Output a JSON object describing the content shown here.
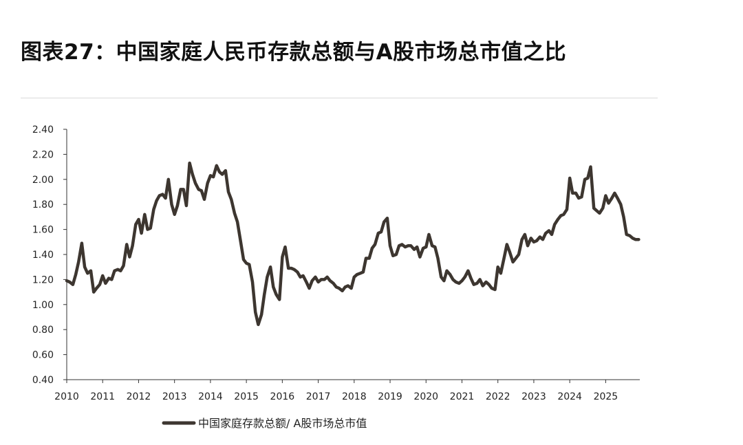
{
  "title": "图表27：中国家庭人民币存款总额与A股市场总市值之比",
  "chart_data": {
    "type": "line",
    "title": "图表27：中国家庭人民币存款总额与A股市场总市值之比",
    "xlabel": "",
    "ylabel": "",
    "xlim": [
      2010,
      2025.95
    ],
    "ylim": [
      0.4,
      2.4
    ],
    "yticks": [
      "0.40",
      "0.60",
      "0.80",
      "1.00",
      "1.20",
      "1.40",
      "1.60",
      "1.80",
      "2.00",
      "2.20",
      "2.40"
    ],
    "xticks": [
      "2010",
      "2011",
      "2012",
      "2013",
      "2014",
      "2015",
      "2016",
      "2017",
      "2018",
      "2019",
      "2020",
      "2021",
      "2022",
      "2023",
      "2024",
      "2025"
    ],
    "grid": false,
    "legend_position": "bottom-left",
    "line_color": "#3d3630",
    "series": [
      {
        "name": "中国家庭存款总额/ A股市场总市值",
        "x": [
          2010.0,
          2010.08,
          2010.17,
          2010.25,
          2010.33,
          2010.42,
          2010.5,
          2010.58,
          2010.67,
          2010.75,
          2010.83,
          2010.92,
          2011.0,
          2011.08,
          2011.17,
          2011.25,
          2011.33,
          2011.42,
          2011.5,
          2011.58,
          2011.67,
          2011.75,
          2011.83,
          2011.92,
          2012.0,
          2012.08,
          2012.17,
          2012.25,
          2012.33,
          2012.42,
          2012.5,
          2012.58,
          2012.67,
          2012.75,
          2012.83,
          2012.92,
          2013.0,
          2013.08,
          2013.17,
          2013.25,
          2013.33,
          2013.42,
          2013.5,
          2013.58,
          2013.67,
          2013.75,
          2013.83,
          2013.92,
          2014.0,
          2014.08,
          2014.17,
          2014.25,
          2014.33,
          2014.42,
          2014.5,
          2014.58,
          2014.67,
          2014.75,
          2014.83,
          2014.92,
          2015.0,
          2015.08,
          2015.17,
          2015.25,
          2015.33,
          2015.42,
          2015.5,
          2015.58,
          2015.67,
          2015.75,
          2015.83,
          2015.92,
          2016.0,
          2016.08,
          2016.17,
          2016.25,
          2016.33,
          2016.42,
          2016.5,
          2016.58,
          2016.67,
          2016.75,
          2016.83,
          2016.92,
          2017.0,
          2017.08,
          2017.17,
          2017.25,
          2017.33,
          2017.42,
          2017.5,
          2017.58,
          2017.67,
          2017.75,
          2017.83,
          2017.92,
          2018.0,
          2018.08,
          2018.17,
          2018.25,
          2018.33,
          2018.42,
          2018.5,
          2018.58,
          2018.67,
          2018.75,
          2018.83,
          2018.92,
          2019.0,
          2019.08,
          2019.17,
          2019.25,
          2019.33,
          2019.42,
          2019.5,
          2019.58,
          2019.67,
          2019.75,
          2019.83,
          2019.92,
          2020.0,
          2020.08,
          2020.17,
          2020.25,
          2020.33,
          2020.42,
          2020.5,
          2020.58,
          2020.67,
          2020.75,
          2020.83,
          2020.92,
          2021.0,
          2021.08,
          2021.17,
          2021.25,
          2021.33,
          2021.42,
          2021.5,
          2021.58,
          2021.67,
          2021.75,
          2021.83,
          2021.92,
          2022.0,
          2022.08,
          2022.17,
          2022.25,
          2022.33,
          2022.42,
          2022.5,
          2022.58,
          2022.67,
          2022.75,
          2022.83,
          2022.92,
          2023.0,
          2023.08,
          2023.17,
          2023.25,
          2023.33,
          2023.42,
          2023.5,
          2023.58,
          2023.67,
          2023.75,
          2023.83,
          2023.92,
          2024.0,
          2024.08,
          2024.17,
          2024.25,
          2024.33,
          2024.42,
          2024.5,
          2024.58,
          2024.67,
          2024.75,
          2024.83,
          2024.92,
          2025.0,
          2025.08,
          2025.17,
          2025.25,
          2025.33,
          2025.42,
          2025.5,
          2025.58,
          2025.67,
          2025.75,
          2025.83,
          2025.92
        ],
        "values": [
          1.19,
          1.18,
          1.16,
          1.24,
          1.34,
          1.49,
          1.3,
          1.25,
          1.27,
          1.1,
          1.13,
          1.16,
          1.23,
          1.17,
          1.21,
          1.2,
          1.27,
          1.28,
          1.27,
          1.31,
          1.48,
          1.38,
          1.47,
          1.64,
          1.68,
          1.57,
          1.72,
          1.6,
          1.61,
          1.76,
          1.83,
          1.87,
          1.88,
          1.85,
          2.0,
          1.8,
          1.72,
          1.79,
          1.92,
          1.92,
          1.79,
          2.13,
          2.04,
          1.97,
          1.92,
          1.91,
          1.84,
          1.97,
          2.03,
          2.02,
          2.11,
          2.06,
          2.04,
          2.07,
          1.9,
          1.84,
          1.73,
          1.66,
          1.52,
          1.36,
          1.33,
          1.32,
          1.18,
          0.94,
          0.84,
          0.92,
          1.08,
          1.22,
          1.3,
          1.14,
          1.08,
          1.04,
          1.38,
          1.46,
          1.29,
          1.29,
          1.28,
          1.26,
          1.22,
          1.23,
          1.18,
          1.13,
          1.19,
          1.22,
          1.18,
          1.2,
          1.2,
          1.22,
          1.19,
          1.17,
          1.14,
          1.13,
          1.11,
          1.14,
          1.15,
          1.13,
          1.22,
          1.24,
          1.25,
          1.26,
          1.37,
          1.37,
          1.45,
          1.48,
          1.57,
          1.58,
          1.66,
          1.69,
          1.47,
          1.39,
          1.4,
          1.47,
          1.48,
          1.46,
          1.47,
          1.47,
          1.44,
          1.46,
          1.38,
          1.45,
          1.46,
          1.56,
          1.47,
          1.46,
          1.37,
          1.22,
          1.19,
          1.27,
          1.24,
          1.2,
          1.18,
          1.17,
          1.19,
          1.22,
          1.27,
          1.21,
          1.16,
          1.17,
          1.2,
          1.15,
          1.18,
          1.16,
          1.13,
          1.12,
          1.3,
          1.25,
          1.37,
          1.48,
          1.42,
          1.34,
          1.37,
          1.4,
          1.52,
          1.56,
          1.47,
          1.53,
          1.5,
          1.51,
          1.54,
          1.52,
          1.57,
          1.59,
          1.56,
          1.64,
          1.68,
          1.71,
          1.72,
          1.76,
          2.01,
          1.89,
          1.89,
          1.85,
          1.86,
          2.0,
          2.01,
          2.1,
          1.77,
          1.75,
          1.73,
          1.77,
          1.87,
          1.81,
          1.85,
          1.89,
          1.85,
          1.8,
          1.7,
          1.56,
          1.55,
          1.53,
          1.52,
          1.52
        ]
      }
    ]
  }
}
